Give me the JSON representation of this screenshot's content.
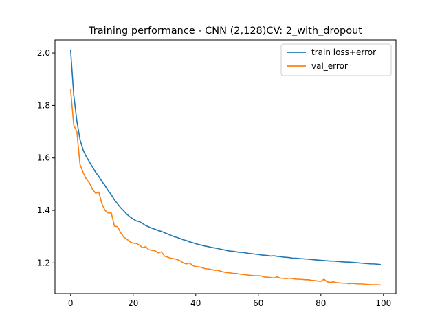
{
  "chart_data": {
    "type": "line",
    "title": "Training performance - CNN (2,128)CV: 2_with_dropout",
    "xlabel": "",
    "ylabel": "",
    "xlim": [
      -5,
      104
    ],
    "ylim": [
      1.083,
      2.05
    ],
    "xticks": [
      0,
      20,
      40,
      60,
      80,
      100
    ],
    "xtick_labels": [
      "0",
      "20",
      "40",
      "60",
      "80",
      "100"
    ],
    "yticks": [
      1.2,
      1.4,
      1.6,
      1.8,
      2.0
    ],
    "ytick_labels": [
      "1.2",
      "1.4",
      "1.6",
      "1.8",
      "2.0"
    ],
    "grid": false,
    "legend_position": "top-right",
    "series": [
      {
        "name": "train loss+error",
        "color": "#1f77b4",
        "x": [
          0,
          1,
          2,
          3,
          4,
          5,
          6,
          7,
          8,
          9,
          10,
          11,
          12,
          13,
          14,
          15,
          16,
          17,
          18,
          19,
          20,
          21,
          22,
          23,
          24,
          25,
          26,
          27,
          28,
          29,
          30,
          31,
          32,
          33,
          34,
          35,
          36,
          37,
          38,
          39,
          40,
          41,
          42,
          43,
          44,
          45,
          46,
          47,
          48,
          49,
          50,
          51,
          52,
          53,
          54,
          55,
          56,
          57,
          58,
          59,
          60,
          61,
          62,
          63,
          64,
          65,
          66,
          67,
          68,
          69,
          70,
          71,
          72,
          73,
          74,
          75,
          76,
          77,
          78,
          79,
          80,
          81,
          82,
          83,
          84,
          85,
          86,
          87,
          88,
          89,
          90,
          91,
          92,
          93,
          94,
          95,
          96,
          97,
          98,
          99
        ],
        "values": [
          2.01,
          1.84,
          1.74,
          1.67,
          1.63,
          1.605,
          1.585,
          1.565,
          1.545,
          1.53,
          1.51,
          1.495,
          1.475,
          1.46,
          1.44,
          1.425,
          1.41,
          1.398,
          1.385,
          1.375,
          1.367,
          1.36,
          1.357,
          1.35,
          1.342,
          1.337,
          1.332,
          1.328,
          1.323,
          1.32,
          1.315,
          1.31,
          1.305,
          1.3,
          1.297,
          1.293,
          1.288,
          1.285,
          1.28,
          1.277,
          1.273,
          1.27,
          1.267,
          1.264,
          1.262,
          1.259,
          1.257,
          1.255,
          1.252,
          1.25,
          1.247,
          1.245,
          1.244,
          1.242,
          1.24,
          1.24,
          1.238,
          1.236,
          1.235,
          1.233,
          1.232,
          1.23,
          1.229,
          1.228,
          1.226,
          1.227,
          1.225,
          1.224,
          1.222,
          1.221,
          1.22,
          1.218,
          1.218,
          1.217,
          1.216,
          1.215,
          1.214,
          1.213,
          1.212,
          1.211,
          1.21,
          1.209,
          1.208,
          1.207,
          1.207,
          1.206,
          1.205,
          1.204,
          1.203,
          1.203,
          1.202,
          1.201,
          1.2,
          1.199,
          1.198,
          1.197,
          1.196,
          1.196,
          1.195,
          1.194
        ]
      },
      {
        "name": "val_error",
        "color": "#ff7f0e",
        "x": [
          0,
          1,
          2,
          3,
          4,
          5,
          6,
          7,
          8,
          9,
          10,
          11,
          12,
          13,
          14,
          15,
          16,
          17,
          18,
          19,
          20,
          21,
          22,
          23,
          24,
          25,
          26,
          27,
          28,
          29,
          30,
          31,
          32,
          33,
          34,
          35,
          36,
          37,
          38,
          39,
          40,
          41,
          42,
          43,
          44,
          45,
          46,
          47,
          48,
          49,
          50,
          51,
          52,
          53,
          54,
          55,
          56,
          57,
          58,
          59,
          60,
          61,
          62,
          63,
          64,
          65,
          66,
          67,
          68,
          69,
          70,
          71,
          72,
          73,
          74,
          75,
          76,
          77,
          78,
          79,
          80,
          81,
          82,
          83,
          84,
          85,
          86,
          87,
          88,
          89,
          90,
          91,
          92,
          93,
          94,
          95,
          96,
          97,
          98,
          99
        ],
        "values": [
          1.86,
          1.725,
          1.7,
          1.575,
          1.545,
          1.52,
          1.505,
          1.48,
          1.465,
          1.47,
          1.425,
          1.4,
          1.39,
          1.39,
          1.34,
          1.338,
          1.315,
          1.298,
          1.29,
          1.28,
          1.275,
          1.274,
          1.268,
          1.258,
          1.262,
          1.25,
          1.248,
          1.246,
          1.238,
          1.242,
          1.226,
          1.222,
          1.218,
          1.216,
          1.213,
          1.208,
          1.2,
          1.196,
          1.2,
          1.19,
          1.186,
          1.185,
          1.182,
          1.178,
          1.177,
          1.175,
          1.172,
          1.172,
          1.168,
          1.165,
          1.163,
          1.162,
          1.16,
          1.16,
          1.157,
          1.156,
          1.155,
          1.153,
          1.152,
          1.151,
          1.151,
          1.15,
          1.146,
          1.145,
          1.144,
          1.142,
          1.147,
          1.142,
          1.141,
          1.14,
          1.142,
          1.14,
          1.138,
          1.138,
          1.137,
          1.136,
          1.136,
          1.134,
          1.133,
          1.131,
          1.13,
          1.138,
          1.128,
          1.126,
          1.128,
          1.125,
          1.124,
          1.123,
          1.123,
          1.121,
          1.122,
          1.121,
          1.12,
          1.12,
          1.119,
          1.118,
          1.117,
          1.117,
          1.117,
          1.116
        ]
      }
    ]
  }
}
